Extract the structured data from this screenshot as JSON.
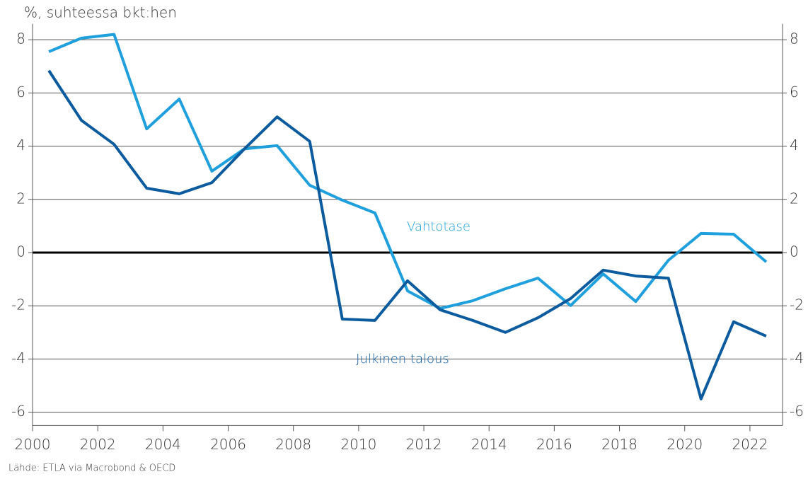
{
  "chart_data": {
    "type": "line",
    "y_axis_label": "%, suhteessa bkt:hen",
    "source": "Lähde: ETLA via Macrobond & OECD",
    "x": [
      2000.5,
      2001.5,
      2002.5,
      2003.5,
      2004.5,
      2005.5,
      2006.5,
      2007.5,
      2008.5,
      2009.5,
      2010.5,
      2011.5,
      2012.5,
      2013.5,
      2014.5,
      2015.5,
      2016.5,
      2017.5,
      2018.5,
      2019.5,
      2020.5,
      2021.5,
      2022.5
    ],
    "series": [
      {
        "name": "Vahtotase",
        "color": "#1fa0dc",
        "values": [
          7.55,
          8.06,
          8.2,
          4.65,
          5.77,
          3.06,
          3.9,
          4.02,
          2.53,
          1.97,
          1.49,
          -1.44,
          -2.1,
          -1.81,
          -1.36,
          -0.96,
          -1.99,
          -0.8,
          -1.84,
          -0.29,
          0.72,
          0.69,
          -0.35
        ]
      },
      {
        "name": "Julkinen talous",
        "color": "#0b5b9e",
        "values": [
          6.84,
          4.97,
          4.07,
          2.42,
          2.21,
          2.63,
          3.9,
          5.1,
          4.18,
          -2.5,
          -2.55,
          -1.06,
          -2.15,
          -2.55,
          -3.0,
          -2.45,
          -1.73,
          -0.66,
          -0.88,
          -0.96,
          -5.5,
          -2.6,
          -3.14
        ]
      }
    ],
    "xlim": [
      2000,
      2023
    ],
    "xticks": [
      2000,
      2002,
      2004,
      2006,
      2008,
      2010,
      2012,
      2014,
      2016,
      2018,
      2020,
      2022
    ],
    "ylim": [
      -6.5,
      8.6
    ],
    "yticks": [
      -6,
      -4,
      -2,
      0,
      2,
      4,
      6,
      8
    ],
    "grid": true
  }
}
